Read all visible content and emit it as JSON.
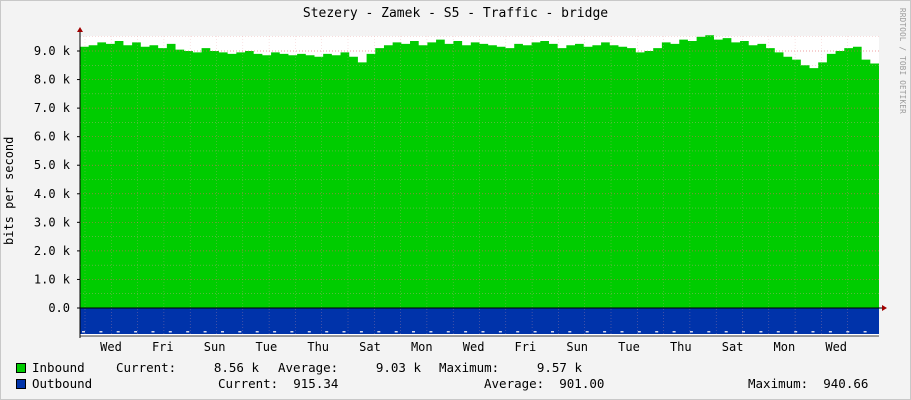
{
  "title": "Stezery - Zamek - S5 - Traffic - bridge",
  "watermark": "RRDTOOL / TOBI OETIKER",
  "colors": {
    "inbound": "#00cc00",
    "outbound": "#0033aa",
    "grid": "#e8a0a0",
    "background": "#f3f3f3"
  },
  "legend": {
    "inbound": {
      "name": "Inbound",
      "current": "Current:     8.56 k",
      "average": "Average:     9.03 k",
      "maximum": "Maximum:     9.57 k"
    },
    "outbound": {
      "name": "Outbound",
      "current": "Current:  915.34",
      "average": "Average:  901.00",
      "maximum": "Maximum:  940.66"
    }
  },
  "chart_data": {
    "type": "area",
    "ylabel": "bits per second",
    "ylim": [
      -1000,
      9600
    ],
    "yticks": [
      "0.0",
      "1.0 k",
      "2.0 k",
      "3.0 k",
      "4.0 k",
      "5.0 k",
      "6.0 k",
      "7.0 k",
      "8.0 k",
      "9.0 k"
    ],
    "ytick_values": [
      0,
      1000,
      2000,
      3000,
      4000,
      5000,
      6000,
      7000,
      8000,
      9000
    ],
    "xticks": [
      "Wed",
      "Fri",
      "Sun",
      "Tue",
      "Thu",
      "Sat",
      "Mon",
      "Wed",
      "Fri",
      "Sun",
      "Tue",
      "Thu",
      "Sat",
      "Mon",
      "Wed"
    ],
    "series": [
      {
        "name": "Inbound",
        "values": [
          9150,
          9200,
          9300,
          9250,
          9350,
          9200,
          9300,
          9150,
          9200,
          9100,
          9250,
          9050,
          9000,
          8950,
          9100,
          9000,
          8950,
          8900,
          8950,
          9000,
          8900,
          8850,
          8950,
          8900,
          8850,
          8900,
          8850,
          8800,
          8900,
          8850,
          8950,
          8800,
          8600,
          8900,
          9100,
          9200,
          9300,
          9250,
          9350,
          9200,
          9300,
          9400,
          9250,
          9350,
          9200,
          9300,
          9250,
          9200,
          9150,
          9100,
          9250,
          9200,
          9300,
          9350,
          9250,
          9100,
          9200,
          9250,
          9150,
          9200,
          9300,
          9200,
          9150,
          9100,
          8950,
          9000,
          9100,
          9300,
          9250,
          9400,
          9350,
          9500,
          9550,
          9400,
          9450,
          9300,
          9350,
          9200,
          9250,
          9100,
          8950,
          8800,
          8700,
          8500,
          8400,
          8600,
          8900,
          9000,
          9100,
          9150,
          8700,
          8560
        ]
      },
      {
        "name": "Outbound",
        "values": [
          915,
          920,
          905,
          930,
          910,
          900,
          925,
          915,
          905,
          930,
          920,
          910,
          900,
          915,
          925,
          905,
          910,
          920,
          900,
          915,
          930,
          905,
          910,
          920,
          915,
          900,
          925,
          910,
          905,
          920,
          915,
          930,
          900,
          910,
          925,
          915,
          905,
          920,
          910,
          900,
          930,
          915,
          905,
          920,
          910,
          925,
          900,
          915,
          905,
          930,
          920,
          910,
          905,
          915,
          925,
          900,
          910,
          920,
          915,
          905,
          930,
          910,
          920,
          900,
          915,
          925,
          905,
          910,
          920,
          915,
          900,
          925,
          910,
          905,
          920,
          915,
          930,
          900,
          910,
          925,
          915,
          905,
          920,
          910,
          900,
          940,
          915,
          905,
          920,
          910,
          925,
          915
        ]
      }
    ]
  }
}
